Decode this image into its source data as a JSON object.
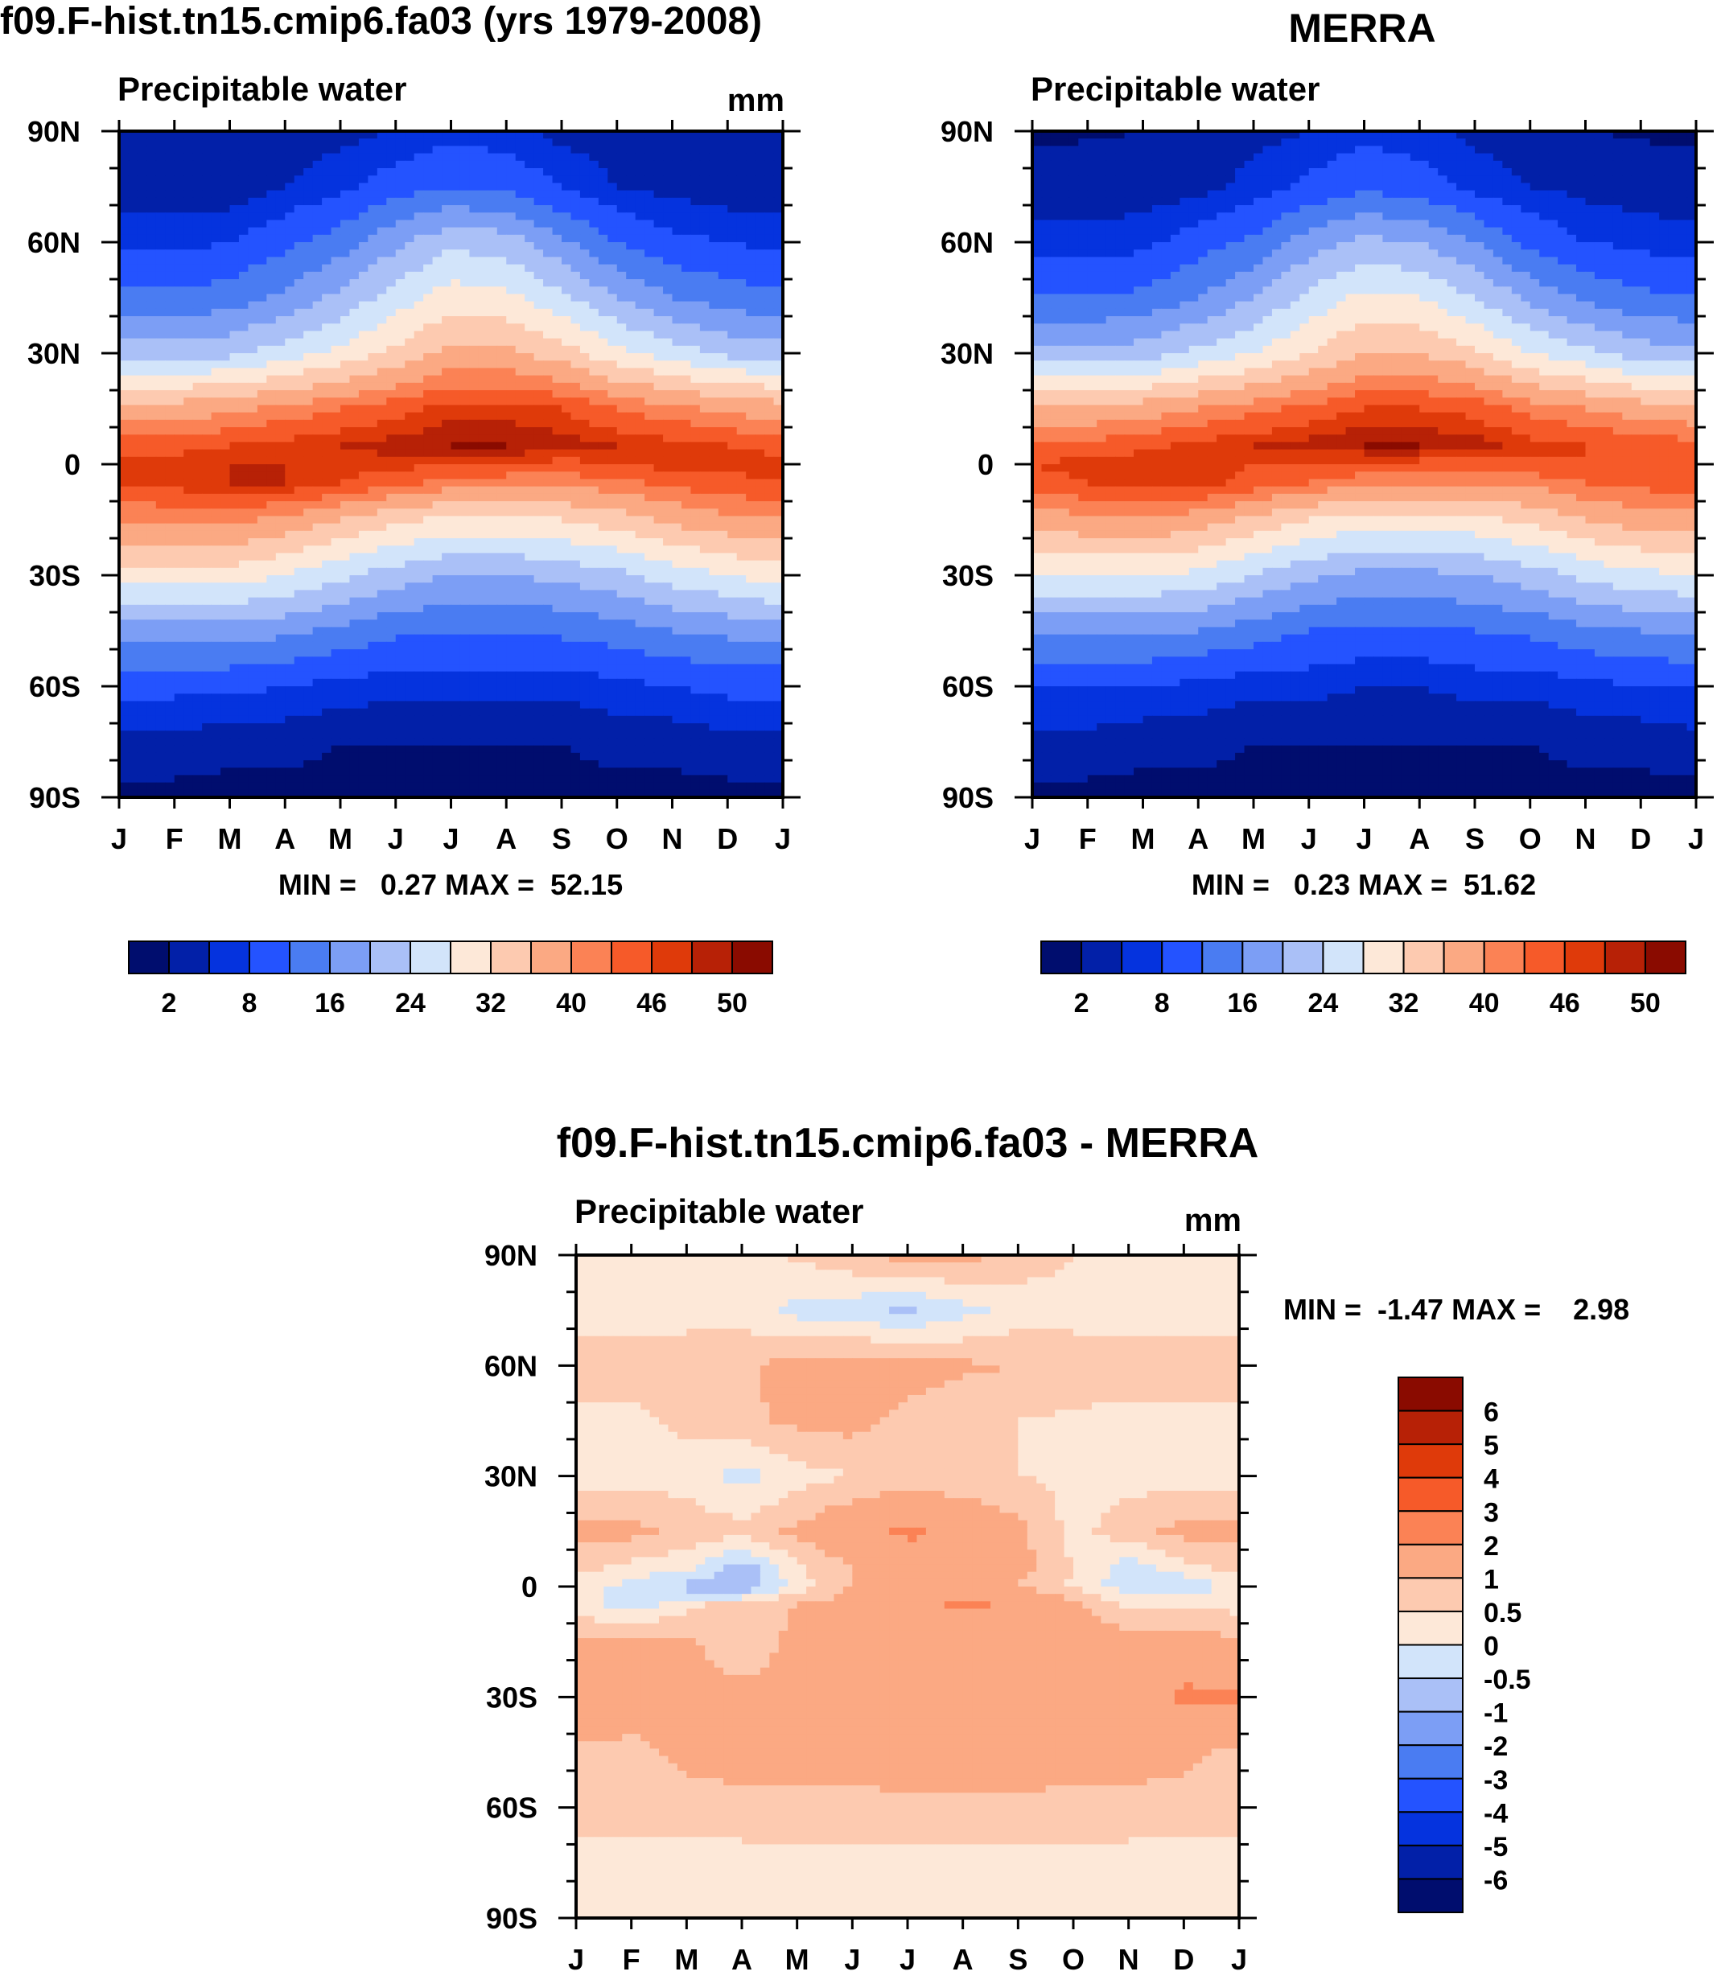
{
  "chart_data": [
    {
      "type": "heatmap",
      "panel": "model",
      "title": "f09.F-hist.tn15.cmip6.fa03 (yrs 1979-2008)",
      "subtitle": "Precipitable water",
      "units": "mm",
      "x_tick_labels": [
        "J",
        "F",
        "M",
        "A",
        "M",
        "J",
        "J",
        "A",
        "S",
        "O",
        "N",
        "D",
        "J"
      ],
      "y_tick_labels": [
        "90N",
        "60N",
        "30N",
        "0",
        "30S",
        "60S",
        "90S"
      ],
      "xlabel": "",
      "ylabel": "",
      "stats_text": "MIN =   0.27 MAX =  52.15",
      "min": 0.27,
      "max": 52.15,
      "colorbar": {
        "orientation": "horizontal",
        "levels": [
          2,
          5,
          8,
          12,
          16,
          20,
          24,
          28,
          32,
          36,
          40,
          43,
          46,
          48,
          50
        ],
        "labels": [
          "2",
          "8",
          "16",
          "24",
          "32",
          "40",
          "46",
          "50"
        ],
        "colors": [
          "#000d6e",
          "#0220a8",
          "#0533de",
          "#2453ff",
          "#4a7cf2",
          "#7c9ef5",
          "#aac0f7",
          "#d2e4fa",
          "#fde8d8",
          "#fdcab0",
          "#fba983",
          "#fb8255",
          "#f65a29",
          "#df3a0a",
          "#b72106",
          "#8a0b00"
        ]
      },
      "data_grid": {
        "lat": [
          90,
          75,
          60,
          45,
          30,
          15,
          5,
          0,
          -5,
          -15,
          -30,
          -45,
          -60,
          -75,
          -90
        ],
        "months": [
          "J",
          "F",
          "M",
          "A",
          "M",
          "J",
          "J",
          "A",
          "S",
          "O",
          "N",
          "D",
          "J"
        ],
        "z": [
          [
            2,
            2,
            2,
            3,
            4,
            5,
            7,
            6,
            4,
            3,
            2,
            2,
            2
          ],
          [
            3,
            3,
            3,
            5,
            7,
            10,
            12,
            11,
            8,
            5,
            4,
            3,
            3
          ],
          [
            7,
            7,
            8,
            11,
            14,
            19,
            23,
            22,
            17,
            12,
            9,
            8,
            7
          ],
          [
            13,
            13,
            14,
            17,
            21,
            26,
            30,
            29,
            25,
            20,
            16,
            14,
            13
          ],
          [
            22,
            22,
            23,
            26,
            29,
            33,
            37,
            37,
            34,
            29,
            26,
            23,
            22
          ],
          [
            38,
            38,
            39,
            41,
            43,
            45,
            47,
            47,
            46,
            43,
            41,
            39,
            38
          ],
          [
            45,
            45,
            46,
            47,
            48,
            49,
            50,
            50,
            49,
            48,
            47,
            46,
            45
          ],
          [
            47,
            47,
            48,
            48,
            47,
            47,
            46,
            46,
            45,
            46,
            47,
            47,
            47
          ],
          [
            46,
            47,
            48,
            48,
            46,
            44,
            42,
            41,
            41,
            42,
            44,
            45,
            46
          ],
          [
            40,
            41,
            41,
            39,
            36,
            33,
            31,
            31,
            32,
            34,
            37,
            39,
            40
          ],
          [
            30,
            30,
            30,
            28,
            25,
            22,
            20,
            20,
            21,
            23,
            26,
            28,
            30
          ],
          [
            18,
            18,
            18,
            17,
            15,
            13,
            12,
            12,
            13,
            14,
            16,
            17,
            18
          ],
          [
            9,
            9,
            9,
            8,
            7,
            6,
            6,
            6,
            6,
            7,
            8,
            9,
            9
          ],
          [
            4,
            4,
            3,
            3,
            2,
            2,
            2,
            2,
            2,
            3,
            3,
            4,
            4
          ],
          [
            1,
            1,
            1,
            1,
            1,
            1,
            1,
            1,
            1,
            1,
            1,
            1,
            1
          ]
        ]
      }
    },
    {
      "type": "heatmap",
      "panel": "obs",
      "title": "MERRA",
      "subtitle": "Precipitable water",
      "x_tick_labels": [
        "J",
        "F",
        "M",
        "A",
        "M",
        "J",
        "J",
        "A",
        "S",
        "O",
        "N",
        "D",
        "J"
      ],
      "y_tick_labels": [
        "90N",
        "60N",
        "30N",
        "0",
        "30S",
        "60S",
        "90S"
      ],
      "xlabel": "",
      "ylabel": "",
      "stats_text": "MIN =   0.23 MAX =  51.62",
      "min": 0.23,
      "max": 51.62,
      "colorbar": {
        "orientation": "horizontal",
        "levels": [
          2,
          5,
          8,
          12,
          16,
          20,
          24,
          28,
          32,
          36,
          40,
          43,
          46,
          48,
          50
        ],
        "labels": [
          "2",
          "8",
          "16",
          "24",
          "32",
          "40",
          "46",
          "50"
        ],
        "colors": [
          "#000d6e",
          "#0220a8",
          "#0533de",
          "#2453ff",
          "#4a7cf2",
          "#7c9ef5",
          "#aac0f7",
          "#d2e4fa",
          "#fde8d8",
          "#fdcab0",
          "#fba983",
          "#fb8255",
          "#f65a29",
          "#df3a0a",
          "#b72106",
          "#8a0b00"
        ]
      },
      "data_grid": {
        "lat": [
          90,
          75,
          60,
          45,
          30,
          15,
          5,
          0,
          -5,
          -15,
          -30,
          -45,
          -60,
          -75,
          -90
        ],
        "months": [
          "J",
          "F",
          "M",
          "A",
          "M",
          "J",
          "J",
          "A",
          "S",
          "O",
          "N",
          "D",
          "J"
        ],
        "z": [
          [
            1.5,
            1.8,
            2,
            3,
            4,
            5,
            7,
            6,
            4,
            3,
            2,
            1.8,
            1.5
          ],
          [
            3,
            3,
            3,
            4,
            6,
            9,
            11,
            10,
            7,
            5,
            4,
            3,
            3
          ],
          [
            6,
            6,
            7,
            10,
            13,
            18,
            21,
            20,
            16,
            11,
            8,
            7,
            6
          ],
          [
            12,
            12,
            13,
            16,
            20,
            25,
            29,
            28,
            24,
            19,
            15,
            13,
            12
          ],
          [
            21,
            21,
            22,
            25,
            28,
            32,
            36,
            36,
            33,
            28,
            25,
            22,
            21
          ],
          [
            37,
            37,
            38,
            40,
            42,
            44,
            46,
            46,
            45,
            42,
            40,
            38,
            37
          ],
          [
            44,
            44,
            45,
            47,
            48,
            49,
            50,
            50,
            49,
            47,
            46,
            45,
            44
          ],
          [
            46,
            47,
            48,
            48,
            46,
            46,
            45,
            45,
            44,
            45,
            46,
            46,
            46
          ],
          [
            45,
            46,
            47,
            47,
            45,
            43,
            41,
            40,
            40,
            41,
            43,
            44,
            45
          ],
          [
            38,
            39,
            40,
            38,
            35,
            32,
            30,
            30,
            31,
            33,
            36,
            38,
            38
          ],
          [
            28,
            28,
            28,
            27,
            24,
            21,
            19,
            19,
            20,
            22,
            25,
            27,
            28
          ],
          [
            17,
            17,
            17,
            16,
            14,
            12,
            11,
            11,
            12,
            13,
            15,
            16,
            17
          ],
          [
            8,
            8,
            8,
            7,
            6,
            6,
            5,
            5,
            6,
            6,
            7,
            8,
            8
          ],
          [
            4,
            4,
            3,
            3,
            2,
            2,
            2,
            2,
            2,
            2,
            3,
            3,
            4
          ],
          [
            1,
            1,
            1,
            1,
            1,
            1,
            1,
            1,
            1,
            1,
            1,
            1,
            1
          ]
        ]
      }
    },
    {
      "type": "heatmap",
      "panel": "difference",
      "title": "f09.F-hist.tn15.cmip6.fa03 - MERRA",
      "subtitle": "Precipitable water",
      "units": "mm",
      "x_tick_labels": [
        "J",
        "F",
        "M",
        "A",
        "M",
        "J",
        "J",
        "A",
        "S",
        "O",
        "N",
        "D",
        "J"
      ],
      "y_tick_labels": [
        "90N",
        "60N",
        "30N",
        "0",
        "30S",
        "60S",
        "90S"
      ],
      "xlabel": "",
      "ylabel": "",
      "stats_text": "MIN =  -1.47 MAX =    2.98",
      "min": -1.47,
      "max": 2.98,
      "colorbar": {
        "orientation": "vertical",
        "levels": [
          -6,
          -5,
          -4,
          -3,
          -2,
          -1,
          -0.5,
          0,
          0.5,
          1,
          2,
          3,
          4,
          5,
          6
        ],
        "labels": [
          "6",
          "5",
          "4",
          "3",
          "2",
          "1",
          "0.5",
          "0",
          "-0.5",
          "-1",
          "-2",
          "-3",
          "-4",
          "-5",
          "-6"
        ],
        "colors": [
          "#000d6e",
          "#0220a8",
          "#0533de",
          "#2453ff",
          "#4a7cf2",
          "#7c9ef5",
          "#aac0f7",
          "#d2e4fa",
          "#fde8d8",
          "#fdcab0",
          "#fba983",
          "#fb8255",
          "#f65a29",
          "#df3a0a",
          "#b72106",
          "#8a0b00"
        ]
      },
      "data_grid": {
        "lat": [
          90,
          75,
          60,
          45,
          30,
          15,
          5,
          0,
          -5,
          -15,
          -30,
          -45,
          -60,
          -75,
          -90
        ],
        "months": [
          "J",
          "F",
          "M",
          "A",
          "M",
          "J",
          "J",
          "A",
          "S",
          "O",
          "N",
          "D",
          "J"
        ],
        "z": [
          [
            0.3,
            0.3,
            0.3,
            0.3,
            0.6,
            0.9,
            1.2,
            1.2,
            0.8,
            0.5,
            0.3,
            0.3,
            0.3
          ],
          [
            0.3,
            0.3,
            0.3,
            0.3,
            -0.2,
            -0.3,
            -0.6,
            -0.2,
            0.2,
            0.3,
            0.3,
            0.3,
            0.3
          ],
          [
            0.7,
            0.7,
            0.8,
            0.9,
            1.2,
            1.3,
            1.3,
            1.1,
            1,
            0.8,
            0.7,
            0.7,
            0.7
          ],
          [
            0.4,
            0.4,
            0.6,
            0.9,
            1.1,
            1.2,
            0.8,
            0.6,
            0.5,
            0.4,
            0.4,
            0.4,
            0.4
          ],
          [
            0.3,
            0.3,
            0.3,
            -0.2,
            0.3,
            0.5,
            0.6,
            0.6,
            0.5,
            0.4,
            0.3,
            0.3,
            0.3
          ],
          [
            1.2,
            1.2,
            0.8,
            0.7,
            1.1,
            1.6,
            2.2,
            1.6,
            1.2,
            0.3,
            0.8,
            1.2,
            1.2
          ],
          [
            0.7,
            0.3,
            0.2,
            -0.8,
            0.4,
            1,
            1.4,
            1.9,
            1.2,
            0.5,
            -0.3,
            0.3,
            0.7
          ],
          [
            0.2,
            -0.2,
            -0.7,
            -1.1,
            0.3,
            1,
            1.2,
            1.2,
            1,
            0.4,
            -0.3,
            -0.4,
            0.2
          ],
          [
            0.3,
            -0.3,
            0.4,
            0.7,
            1,
            1.3,
            1.4,
            2.2,
            1.8,
            1.2,
            0.4,
            0.5,
            0.3
          ],
          [
            1.1,
            1.2,
            1.1,
            0.6,
            1.2,
            1.3,
            1.3,
            1.3,
            1.4,
            1.3,
            1.3,
            1.3,
            1.1
          ],
          [
            2.1,
            1.4,
            1.3,
            1.2,
            1.2,
            1.2,
            1.3,
            1.3,
            1.3,
            1.3,
            1.3,
            2.2,
            2.1
          ],
          [
            0.8,
            0.8,
            1.2,
            1.3,
            1.3,
            1.3,
            1.3,
            1.3,
            1.3,
            1.3,
            1.3,
            1.2,
            0.8
          ],
          [
            0.7,
            0.7,
            0.7,
            0.8,
            0.8,
            0.8,
            0.9,
            0.9,
            0.9,
            0.8,
            0.8,
            0.7,
            0.7
          ],
          [
            0.3,
            0.3,
            0.3,
            0.3,
            0.3,
            0.3,
            0.3,
            0.3,
            0.3,
            0.3,
            0.3,
            0.3,
            0.3
          ],
          [
            0.3,
            0.3,
            0.3,
            0.3,
            0.3,
            0.3,
            0.3,
            0.3,
            0.3,
            0.3,
            0.3,
            0.3,
            0.3
          ]
        ]
      }
    }
  ]
}
